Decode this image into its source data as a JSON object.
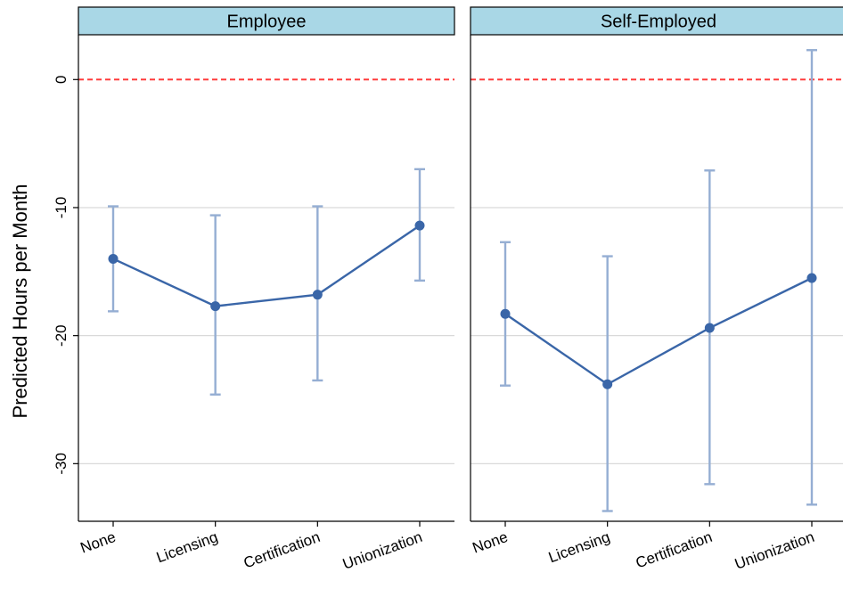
{
  "chart_data": {
    "type": "line",
    "ylabel": "Predicted Hours per Month",
    "ylim": [
      -34.5,
      3.5
    ],
    "yticks": [
      0,
      -10,
      -20,
      -30
    ],
    "reference_line": {
      "y": 0,
      "color": "#ff3b3b",
      "style": "dashed"
    },
    "categories": [
      "None",
      "Licensing",
      "Certification",
      "Unionization"
    ],
    "colors": {
      "series": "#3a66a8",
      "errorbar": "#95aed3",
      "header_fill": "#a9d7e6",
      "grid": "#d9d9d9"
    },
    "grid": true,
    "panels": [
      {
        "title": "Employee",
        "values": [
          -14.0,
          -17.7,
          -16.8,
          -11.4
        ],
        "ci_low": [
          -18.1,
          -24.6,
          -23.5,
          -15.7
        ],
        "ci_high": [
          -9.9,
          -10.6,
          -9.9,
          -7.0
        ]
      },
      {
        "title": "Self-Employed",
        "values": [
          -18.3,
          -23.8,
          -19.4,
          -15.5
        ],
        "ci_low": [
          -23.9,
          -33.7,
          -31.6,
          -33.2
        ],
        "ci_high": [
          -12.7,
          -13.8,
          -7.1,
          2.3
        ]
      }
    ]
  }
}
